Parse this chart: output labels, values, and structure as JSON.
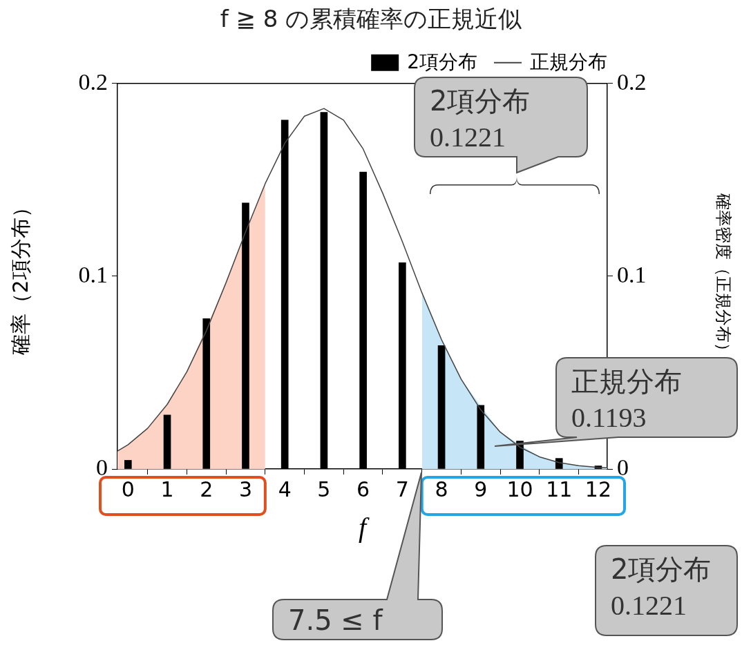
{
  "chart_data": {
    "type": "bar",
    "title": "f ≧ 8 の累積確率の正規近似",
    "xlabel": "f",
    "ylabel": "確率（2項分布）",
    "y2label": "確率密度（正規分布）",
    "xlim": [
      -0.27,
      12.23
    ],
    "xticks": [
      0,
      1,
      2,
      3,
      4,
      5,
      6,
      7,
      8,
      9,
      10,
      11,
      12
    ],
    "ylim": [
      0,
      0.2
    ],
    "yticks": [
      0,
      0.1,
      0.2
    ],
    "y2lim": [
      0,
      0.2
    ],
    "y2ticks": [
      0,
      0.1,
      0.2
    ],
    "legend": "top right",
    "marker": "none",
    "series": [
      {
        "name": "2項分布",
        "color": "#000000",
        "x": [
          0,
          1,
          2,
          3,
          4,
          5,
          6,
          7,
          8,
          9,
          10,
          11,
          12
        ],
        "values": [
          0.0045,
          0.028,
          0.078,
          0.138,
          0.181,
          0.185,
          0.154,
          0.107,
          0.064,
          0.033,
          0.0145,
          0.0055,
          0.0016
        ]
      },
      {
        "name": "正規分布",
        "type": "line",
        "color": "#444444",
        "x": [
          -0.27,
          0,
          0.5,
          1,
          1.5,
          2,
          2.5,
          3,
          3.5,
          4,
          4.5,
          5,
          5.5,
          6,
          6.5,
          7,
          7.5,
          8,
          8.5,
          9,
          9.5,
          10,
          10.5,
          11,
          11.5,
          12,
          12.23
        ],
        "values": [
          0.0093,
          0.0126,
          0.0211,
          0.0335,
          0.0504,
          0.0717,
          0.0966,
          0.123,
          0.148,
          0.169,
          0.183,
          0.187,
          0.181,
          0.166,
          0.143,
          0.118,
          0.0914,
          0.0671,
          0.0466,
          0.0307,
          0.0191,
          0.0113,
          0.0063,
          0.0033,
          0.0017,
          0.0008,
          0.0006
        ]
      },
      {
        "type": "area",
        "color": "#fdd3c6",
        "x": [
          -0.27,
          0,
          0.5,
          1,
          1.5,
          2.5,
          3.5
        ],
        "values": [
          0.0093,
          0.0126,
          0.0211,
          0.0335,
          0.0504,
          0.0966,
          0.148
        ]
      },
      {
        "type": "area",
        "color": "#c6e6f7",
        "x": [
          7.5,
          8,
          8.5,
          9.5,
          10.5,
          11,
          11.5,
          12,
          12.23
        ],
        "values": [
          0.0914,
          0.0671,
          0.0466,
          0.0191,
          0.0063,
          0.0033,
          0.0017,
          0.0008,
          0.0006
        ]
      }
    ],
    "annotations": [
      "2項分布\n0.1221",
      "正規分布\n0.1193",
      "7.5 ≤ f",
      "2項分布\n0.1221"
    ]
  }
}
